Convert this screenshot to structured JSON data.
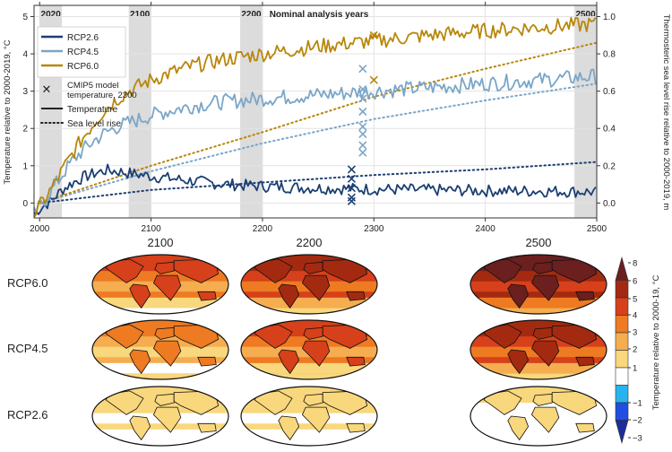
{
  "chart_data": [
    {
      "type": "line",
      "annotation_title": "Nominal analysis years",
      "ylabel_left": "Temperature relative to 2000-2019, °C",
      "ylabel_right": "Thermosteric sea level rise relative to 2000-2019, m",
      "xlim": [
        1995,
        2500
      ],
      "ylim_left": [
        -0.4,
        5.3
      ],
      "ylim_right": [
        -0.08,
        1.06
      ],
      "x_ticks": [
        2000,
        2100,
        2200,
        2300,
        2400,
        2500
      ],
      "y_ticks_left": [
        0,
        1,
        2,
        3,
        4,
        5
      ],
      "y_ticks_right": [
        0.0,
        0.2,
        0.4,
        0.6,
        0.8,
        1.0
      ],
      "grid": true,
      "legend_position": "top-left",
      "shaded_periods": [
        {
          "label": "2020",
          "from": 2000,
          "to": 2020
        },
        {
          "label": "2100",
          "from": 2080,
          "to": 2100
        },
        {
          "label": "2200",
          "from": 2180,
          "to": 2200
        },
        {
          "label": "2500",
          "from": 2480,
          "to": 2500
        }
      ],
      "legend": [
        {
          "label": "RCP2.6",
          "color": "#1b3f73",
          "style": "line"
        },
        {
          "label": "RCP4.5",
          "color": "#7aa6c8",
          "style": "line"
        },
        {
          "label": "RCP6.0",
          "color": "#b8860b",
          "style": "line"
        },
        {
          "label": "CMIP5 model temperature, 2300",
          "color": "#222222",
          "style": "cross"
        },
        {
          "label": "Temperature",
          "color": "#222222",
          "style": "solid"
        },
        {
          "label": "Sea level rise",
          "color": "#222222",
          "style": "dotted"
        }
      ],
      "series": [
        {
          "name": "RCP2.6",
          "color": "#1b3f73",
          "kind": "temperature",
          "x": [
            1995,
            2000,
            2010,
            2020,
            2030,
            2040,
            2050,
            2060,
            2070,
            2080,
            2100,
            2120,
            2140,
            2160,
            2180,
            2200,
            2250,
            2300,
            2350,
            2400,
            2450,
            2500
          ],
          "y": [
            -0.3,
            -0.15,
            0.05,
            0.35,
            0.55,
            0.7,
            0.8,
            0.88,
            0.85,
            0.8,
            0.72,
            0.65,
            0.58,
            0.52,
            0.48,
            0.45,
            0.4,
            0.37,
            0.35,
            0.33,
            0.32,
            0.3
          ]
        },
        {
          "name": "RCP4.5",
          "color": "#7aa6c8",
          "kind": "temperature",
          "x": [
            1995,
            2000,
            2010,
            2020,
            2030,
            2040,
            2050,
            2060,
            2070,
            2080,
            2100,
            2120,
            2140,
            2160,
            2180,
            2200,
            2250,
            2300,
            2350,
            2400,
            2450,
            2500
          ],
          "y": [
            -0.3,
            -0.1,
            0.3,
            0.75,
            1.15,
            1.45,
            1.7,
            1.9,
            2.05,
            2.15,
            2.35,
            2.5,
            2.62,
            2.7,
            2.75,
            2.8,
            2.9,
            3.0,
            3.1,
            3.2,
            3.3,
            3.4
          ]
        },
        {
          "name": "RCP6.0",
          "color": "#b8860b",
          "kind": "temperature",
          "x": [
            1995,
            2000,
            2010,
            2020,
            2030,
            2040,
            2050,
            2060,
            2070,
            2080,
            2100,
            2120,
            2140,
            2160,
            2180,
            2200,
            2250,
            2300,
            2350,
            2400,
            2450,
            2500
          ],
          "y": [
            -0.3,
            -0.1,
            0.35,
            0.85,
            1.35,
            1.8,
            2.2,
            2.55,
            2.8,
            3.0,
            3.3,
            3.52,
            3.7,
            3.82,
            3.92,
            4.0,
            4.2,
            4.35,
            4.5,
            4.62,
            4.72,
            4.8
          ]
        },
        {
          "name": "RCP2.6",
          "color": "#1b3f73",
          "kind": "sea_level_rise_m",
          "x": [
            2000,
            2100,
            2200,
            2300,
            2400,
            2500
          ],
          "y": [
            0.0,
            0.07,
            0.11,
            0.15,
            0.18,
            0.22
          ]
        },
        {
          "name": "RCP4.5",
          "color": "#7aa6c8",
          "kind": "sea_level_rise_m",
          "x": [
            2000,
            2100,
            2200,
            2300,
            2400,
            2500
          ],
          "y": [
            0.0,
            0.17,
            0.32,
            0.45,
            0.55,
            0.64
          ]
        },
        {
          "name": "RCP6.0",
          "color": "#b8860b",
          "kind": "sea_level_rise_m",
          "x": [
            2000,
            2100,
            2200,
            2300,
            2400,
            2500
          ],
          "y": [
            0.0,
            0.2,
            0.38,
            0.57,
            0.72,
            0.86
          ]
        }
      ],
      "cmip5_2300_markers": [
        {
          "scenario": "RCP6.0",
          "color": "#b8860b",
          "x": 2300,
          "y": [
            4.5,
            3.3
          ]
        },
        {
          "scenario": "RCP4.5",
          "color": "#7aa6c8",
          "x": 2290,
          "y": [
            3.6,
            3.05,
            2.8,
            2.45,
            2.05,
            1.85,
            1.55,
            1.35
          ]
        },
        {
          "scenario": "RCP2.6",
          "color": "#1b3f73",
          "x": 2280,
          "y": [
            0.9,
            0.65,
            0.4,
            0.15,
            0.05
          ]
        }
      ]
    },
    {
      "type": "heatmap",
      "column_titles": [
        "2100",
        "2200",
        "2500"
      ],
      "row_labels": [
        "RCP6.0",
        "RCP4.5",
        "RCP2.6"
      ],
      "colorbar_label": "Temperature relative to 2000-19, °C",
      "colorbar_ticks": [
        "8",
        "6",
        "5",
        "4",
        "3",
        "2",
        "1",
        "−1",
        "−2",
        "−3"
      ],
      "colorbar_colors": [
        "#6b1f1f",
        "#a32a10",
        "#d6401a",
        "#ee7a22",
        "#f5ad50",
        "#f9d77c",
        "#ffffff",
        "#27b4ee",
        "#1f4ee0",
        "#1c2d9a"
      ],
      "maps": [
        {
          "row": "RCP6.0",
          "column": "2100",
          "colors": [
            "#f5ad50",
            "#ee7a22",
            "#d6401a",
            "#f9d77c",
            "#ffffff"
          ]
        },
        {
          "row": "RCP6.0",
          "column": "2200",
          "colors": [
            "#ee7a22",
            "#d6401a",
            "#a32a10",
            "#f5ad50",
            "#f9d77c"
          ]
        },
        {
          "row": "RCP6.0",
          "column": "2500",
          "colors": [
            "#d6401a",
            "#a32a10",
            "#6b1f1f",
            "#ee7a22",
            "#f5ad50"
          ]
        },
        {
          "row": "RCP4.5",
          "column": "2100",
          "colors": [
            "#f9d77c",
            "#f5ad50",
            "#ee7a22",
            "#ffffff",
            "#f9d77c"
          ]
        },
        {
          "row": "RCP4.5",
          "column": "2200",
          "colors": [
            "#f5ad50",
            "#ee7a22",
            "#d6401a",
            "#f9d77c",
            "#f9d77c"
          ]
        },
        {
          "row": "RCP4.5",
          "column": "2500",
          "colors": [
            "#ee7a22",
            "#d6401a",
            "#a32a10",
            "#f5ad50",
            "#f9d77c"
          ]
        },
        {
          "row": "RCP2.6",
          "column": "2100",
          "colors": [
            "#ffffff",
            "#f9d77c",
            "#f9d77c",
            "#ffffff",
            "#ffffff"
          ]
        },
        {
          "row": "RCP2.6",
          "column": "2200",
          "colors": [
            "#ffffff",
            "#f9d77c",
            "#f9d77c",
            "#ffffff",
            "#ffffff"
          ]
        },
        {
          "row": "RCP2.6",
          "column": "2500",
          "colors": [
            "#ffffff",
            "#ffffff",
            "#f9d77c",
            "#ffffff",
            "#ffffff"
          ]
        }
      ]
    }
  ]
}
